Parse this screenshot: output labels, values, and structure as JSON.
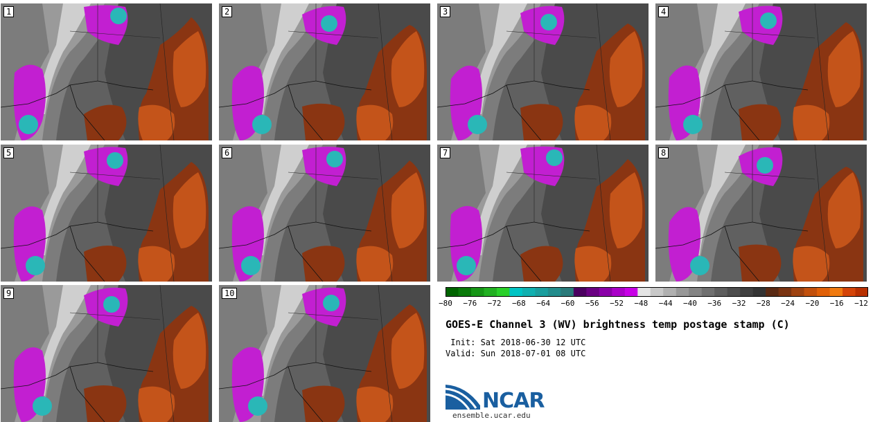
{
  "panels": [
    {
      "label": "1"
    },
    {
      "label": "2"
    },
    {
      "label": "3"
    },
    {
      "label": "4"
    },
    {
      "label": "5"
    },
    {
      "label": "6"
    },
    {
      "label": "7"
    },
    {
      "label": "8"
    },
    {
      "label": "9"
    },
    {
      "label": "10"
    }
  ],
  "colorbar": {
    "colors": [
      "#006400",
      "#0a7a0a",
      "#169616",
      "#22b022",
      "#2ad02a",
      "#00c4c4",
      "#10b0b0",
      "#1a9e9e",
      "#228c8c",
      "#2a7a7a",
      "#4b0060",
      "#6a0082",
      "#8a00a8",
      "#aa00c8",
      "#c800e6",
      "#e4e4e4",
      "#c8c8c8",
      "#b0b0b0",
      "#989898",
      "#848484",
      "#707070",
      "#5e5e5e",
      "#4e4e4e",
      "#404040",
      "#343434",
      "#5a2a14",
      "#7a3412",
      "#9e4210",
      "#c2500c",
      "#e06008",
      "#f07a10",
      "#d44408",
      "#b83000"
    ],
    "tick_labels": [
      "−80",
      "−76",
      "−72",
      "−68",
      "−64",
      "−60",
      "−56",
      "−52",
      "−48",
      "−44",
      "−40",
      "−36",
      "−32",
      "−28",
      "−24",
      "−20",
      "−16",
      "−12"
    ]
  },
  "title": "GOES-E Channel 3 (WV) brightness temp postage stamp (C)",
  "init": " Init: Sat 2018-06-30 12 UTC",
  "valid": "Valid: Sun 2018-07-01 08 UTC",
  "logo_name": "NCAR",
  "site": "ensemble.ucar.edu",
  "colors": {
    "dry": "#c4541a",
    "dry_dark": "#8a3512",
    "cold_cloud": "#c21fd1",
    "very_cold": "#2ab7b7"
  }
}
